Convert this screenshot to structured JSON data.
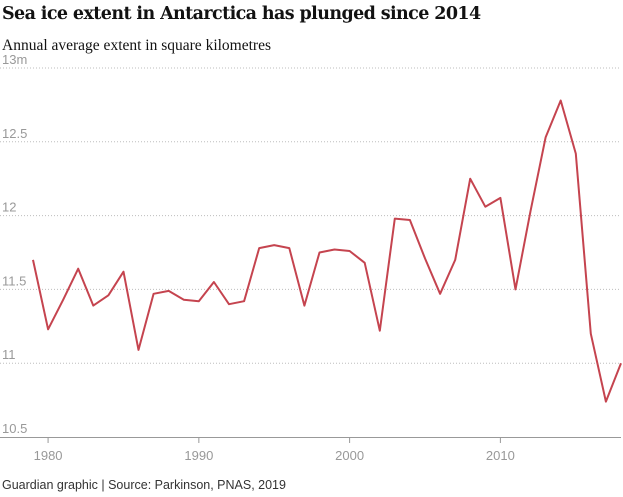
{
  "header": {
    "title": "Sea ice extent in Antarctica has plunged since 2014",
    "subtitle": "Annual average extent in square kilometres"
  },
  "footer": {
    "source": "Guardian graphic | Source: Parkinson, PNAS, 2019"
  },
  "colors": {
    "line": "#c5444f",
    "grid": "#bdbdbd",
    "axis": "#999999",
    "tick_text": "#999999"
  },
  "chart_data": {
    "type": "line",
    "title": "Sea ice extent in Antarctica has plunged since 2014",
    "subtitle": "Annual average extent in square kilometres",
    "xlabel": "",
    "ylabel": "",
    "xlim": [
      1979,
      2018
    ],
    "ylim": [
      10.5,
      13
    ],
    "yticks": [
      {
        "value": 13,
        "label": "13m"
      },
      {
        "value": 12.5,
        "label": "12.5"
      },
      {
        "value": 12,
        "label": "12"
      },
      {
        "value": 11.5,
        "label": "11.5"
      },
      {
        "value": 11,
        "label": "11"
      },
      {
        "value": 10.5,
        "label": "10.5"
      }
    ],
    "xticks": [
      {
        "value": 1980,
        "label": "1980"
      },
      {
        "value": 1990,
        "label": "1990"
      },
      {
        "value": 2000,
        "label": "2000"
      },
      {
        "value": 2010,
        "label": "2010"
      }
    ],
    "grid": true,
    "series": [
      {
        "x": [
          1979,
          1980,
          1981,
          1982,
          1983,
          1984,
          1985,
          1986,
          1987,
          1988,
          1989,
          1990,
          1991,
          1992,
          1993,
          1994,
          1995,
          1996,
          1997,
          1998,
          1999,
          2000,
          2001,
          2002,
          2003,
          2004,
          2005,
          2006,
          2007,
          2008,
          2009,
          2010,
          2011,
          2012,
          2013,
          2014,
          2015,
          2016,
          2017,
          2018
        ],
        "values": [
          11.7,
          11.23,
          11.43,
          11.64,
          11.39,
          11.46,
          11.62,
          11.09,
          11.47,
          11.49,
          11.43,
          11.42,
          11.55,
          11.4,
          11.42,
          11.78,
          11.8,
          11.78,
          11.39,
          11.75,
          11.77,
          11.76,
          11.68,
          11.22,
          11.98,
          11.97,
          11.71,
          11.47,
          11.7,
          12.25,
          12.06,
          12.12,
          11.5,
          12.03,
          12.53,
          12.78,
          12.42,
          11.2,
          10.74,
          11.0
        ]
      }
    ]
  }
}
